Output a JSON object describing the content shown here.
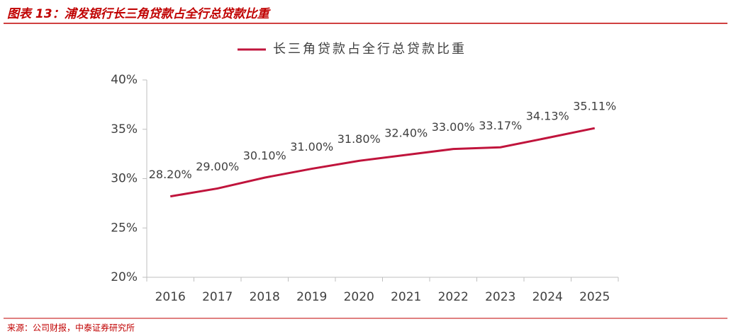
{
  "header": {
    "title": "图表 13：浦发银行长三角贷款占全行总贷款比重"
  },
  "chart_data": {
    "type": "line",
    "categories": [
      "2016",
      "2017",
      "2018",
      "2019",
      "2020",
      "2021",
      "2022",
      "2023",
      "2024",
      "2025"
    ],
    "series": [
      {
        "name": "长三角贷款占全行总贷款比重",
        "color": "#c0143c",
        "values": [
          28.2,
          29.0,
          30.1,
          31.0,
          31.8,
          32.4,
          33.0,
          33.17,
          34.13,
          35.11
        ],
        "value_labels": [
          "28.20%",
          "29.00%",
          "30.10%",
          "31.00%",
          "31.80%",
          "32.40%",
          "33.00%",
          "33.17%",
          "34.13%",
          "35.11%"
        ]
      }
    ],
    "ylim": [
      20,
      40
    ],
    "yticks": [
      {
        "value": 20,
        "label": "20%"
      },
      {
        "value": 25,
        "label": "25%"
      },
      {
        "value": 30,
        "label": "30%"
      },
      {
        "value": 35,
        "label": "35%"
      },
      {
        "value": 40,
        "label": "40%"
      }
    ],
    "legend": "top"
  },
  "footer": {
    "source": "来源：公司财报，中泰证券研究所"
  }
}
